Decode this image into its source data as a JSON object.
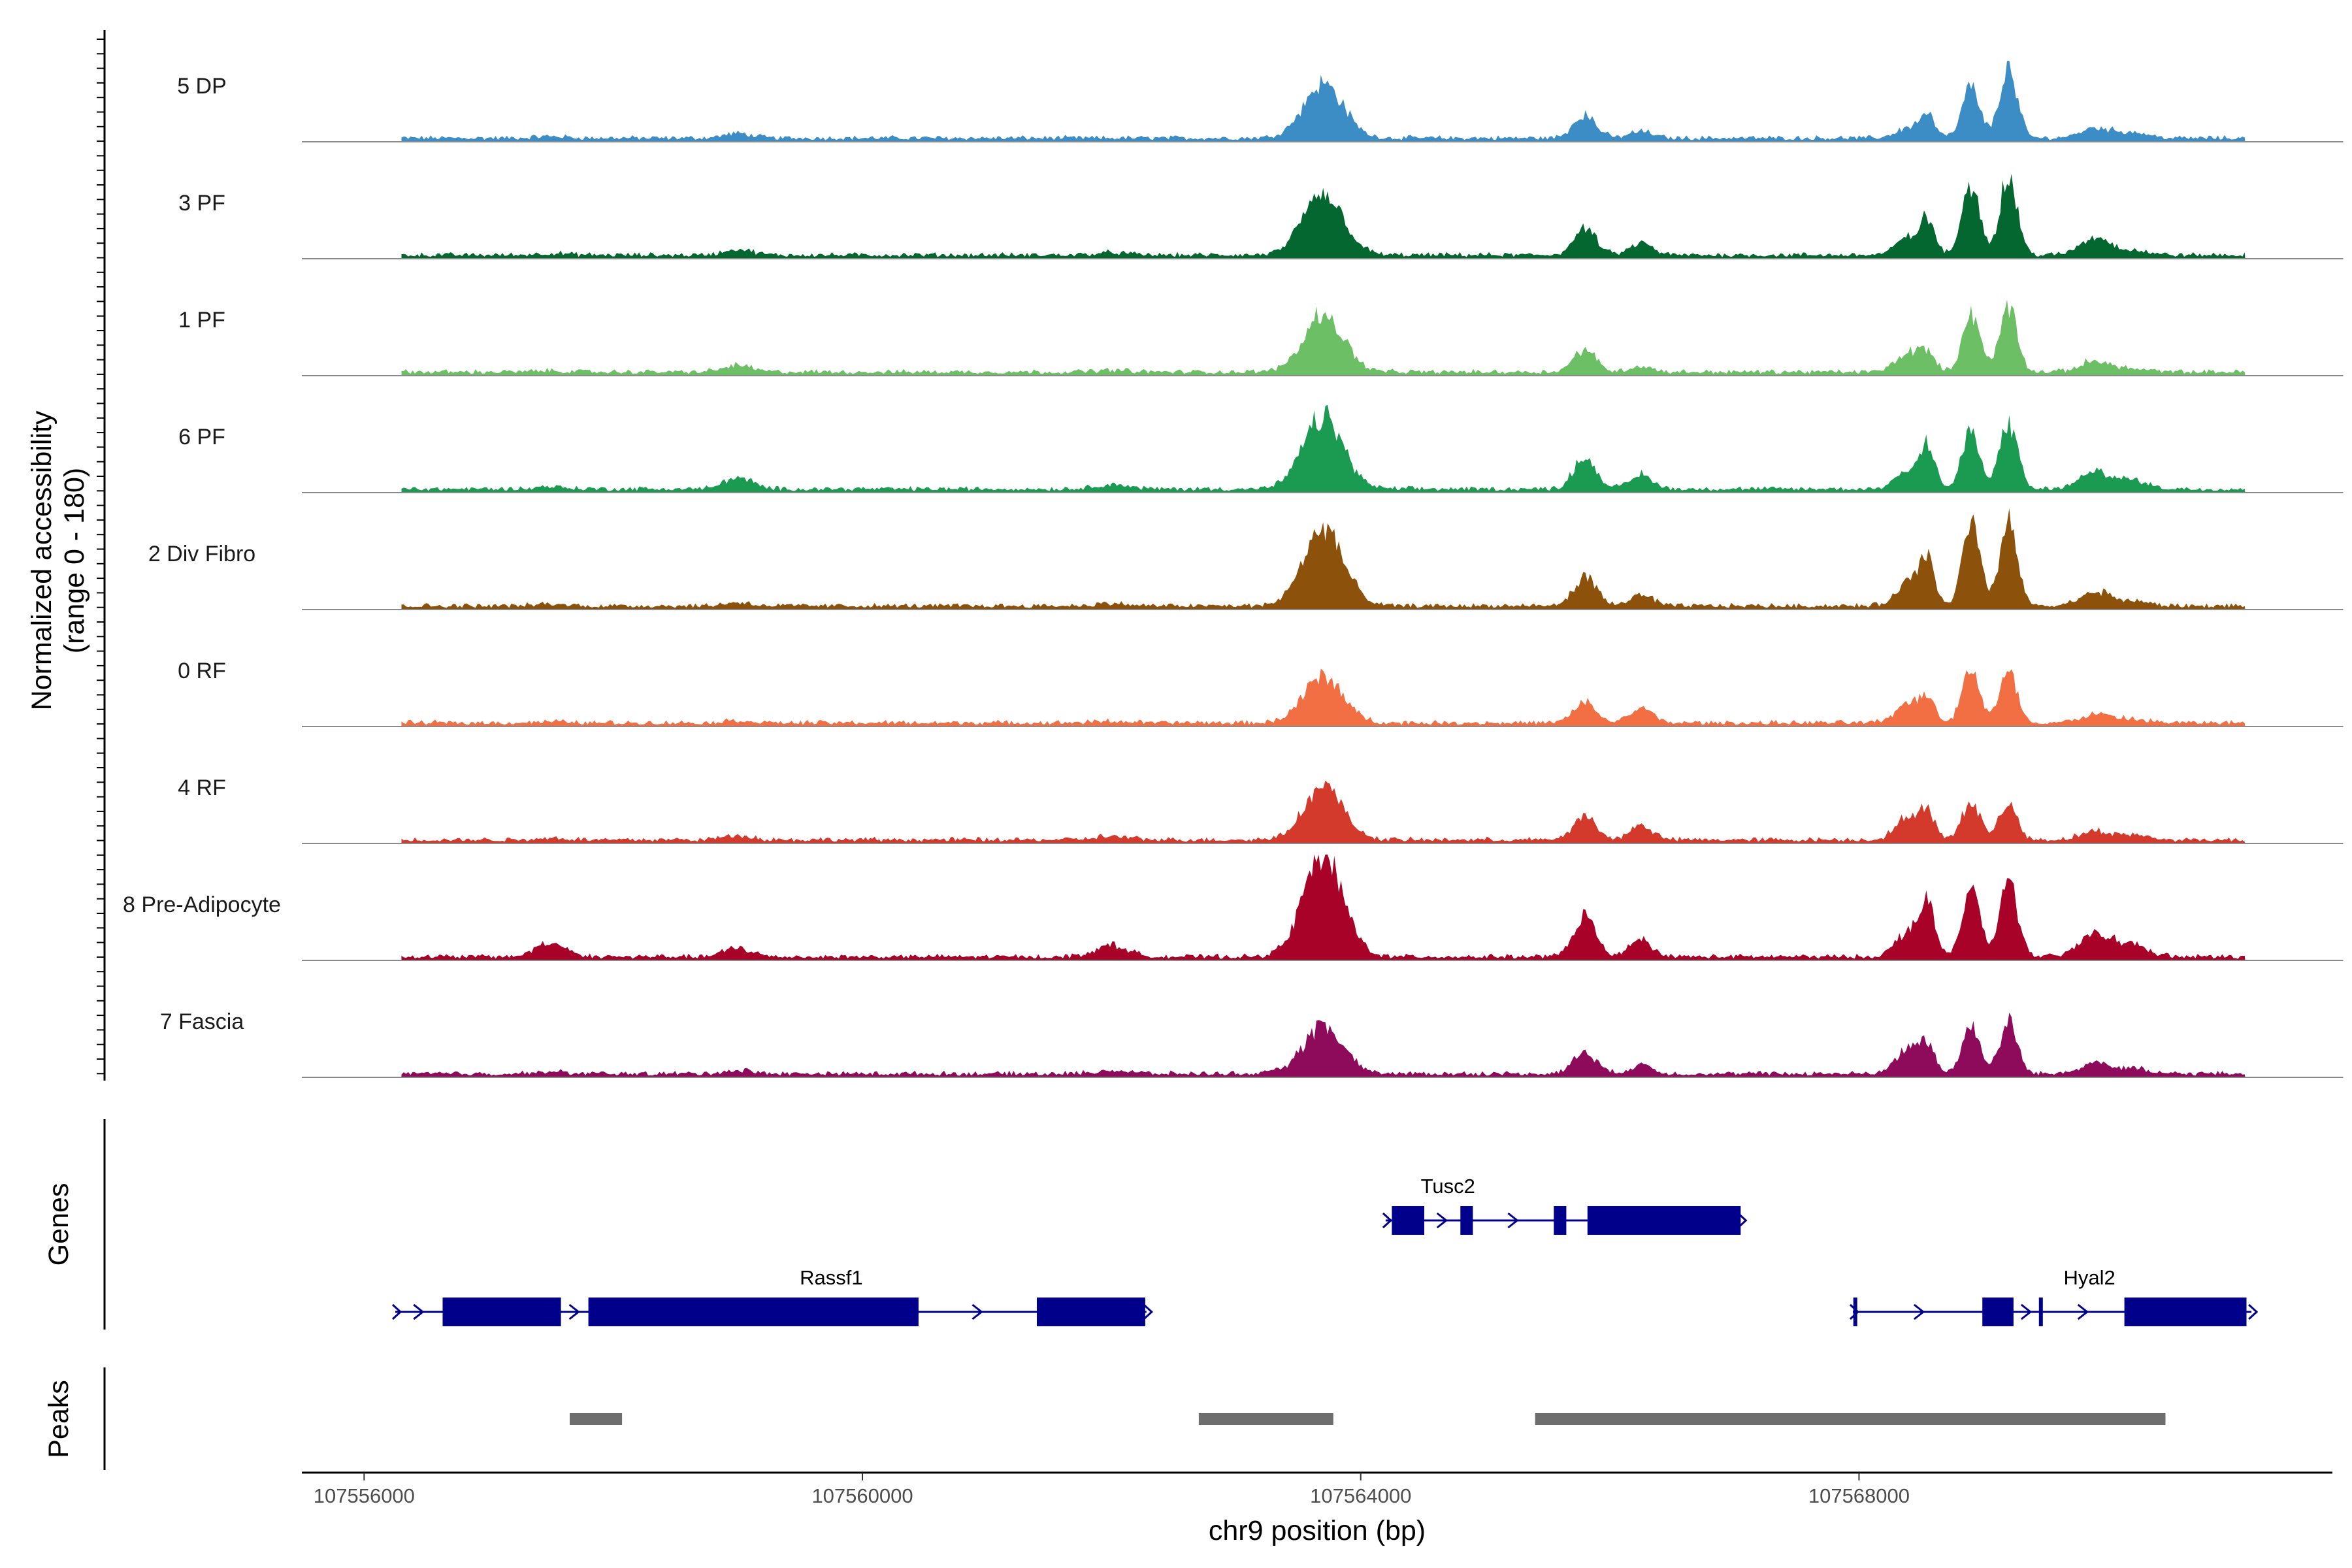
{
  "chart_data": {
    "type": "area",
    "title": "",
    "region": "chr9:107556300-107571100",
    "xlabel": "chr9 position (bp)",
    "ylabel": "Normalized accessibility",
    "ylabel_sub": "(range 0 - 180)",
    "xlim": [
      107555500,
      107571800
    ],
    "xticks": [
      107556000,
      107560000,
      107564000,
      107568000
    ],
    "xtick_labels": [
      "107556000",
      "107560000",
      "107564000",
      "107568000"
    ],
    "ylim": [
      0,
      180
    ],
    "background_level": 8,
    "peak_positions": [
      107557500,
      107559000,
      107562000,
      107563100,
      107563700,
      107565800,
      107566250,
      107568400,
      107568550,
      107568900,
      107569200,
      107569900,
      107570200
    ],
    "series": [
      {
        "name": "5 DP",
        "color": "#3c8dc6",
        "peaks": [
          3,
          8,
          0,
          0,
          95,
          40,
          12,
          18,
          40,
          90,
          120,
          18,
          10
        ]
      },
      {
        "name": "3 PF",
        "color": "#04672f",
        "peaks": [
          3,
          10,
          4,
          0,
          110,
          45,
          20,
          30,
          55,
          120,
          135,
          30,
          8
        ]
      },
      {
        "name": "1 PF",
        "color": "#6dbf65",
        "peaks": [
          2,
          12,
          3,
          0,
          100,
          40,
          10,
          35,
          30,
          100,
          110,
          20,
          5
        ]
      },
      {
        "name": "6 PF",
        "color": "#1b9b52",
        "peaks": [
          4,
          20,
          8,
          0,
          125,
          55,
          25,
          35,
          70,
          100,
          115,
          30,
          15
        ]
      },
      {
        "name": "2 Div Fibro",
        "color": "#8c520c",
        "peaks": [
          3,
          6,
          4,
          0,
          135,
          50,
          20,
          40,
          75,
          140,
          145,
          25,
          8
        ]
      },
      {
        "name": "0 RF",
        "color": "#f26f44",
        "peaks": [
          2,
          4,
          3,
          0,
          80,
          35,
          25,
          35,
          40,
          95,
          85,
          15,
          6
        ]
      },
      {
        "name": "4 RF",
        "color": "#d43a2b",
        "peaks": [
          3,
          8,
          6,
          0,
          90,
          40,
          25,
          40,
          40,
          70,
          65,
          15,
          8
        ]
      },
      {
        "name": "8 Pre-Adipocyte",
        "color": "#a80229",
        "peaks": [
          25,
          15,
          20,
          0,
          180,
          70,
          30,
          45,
          85,
          120,
          140,
          45,
          20
        ]
      },
      {
        "name": "7 Fascia",
        "color": "#8e0a5a",
        "peaks": [
          3,
          6,
          6,
          0,
          80,
          40,
          15,
          45,
          45,
          85,
          90,
          20,
          8
        ]
      }
    ],
    "gene_track": {
      "title": "Genes",
      "genes": [
        {
          "name": "Tusc2",
          "strand": "+",
          "start": 107564200,
          "end": 107567050,
          "exons": [
            [
              107564250,
              107564510
            ],
            [
              107564800,
              107564900
            ],
            [
              107565550,
              107565650
            ],
            [
              107565820,
              107567050
            ]
          ]
        },
        {
          "name": "Rassf1",
          "strand": "+",
          "start": 107556250,
          "end": 107562280,
          "exons": [
            [
              107556630,
              107557580
            ],
            [
              107557800,
              107560450
            ],
            [
              107561400,
              107562270
            ]
          ]
        },
        {
          "name": "Hyal2",
          "strand": "+",
          "start": 107567950,
          "end": 107571150,
          "exons": [
            [
              107567960,
              107567980
            ],
            [
              107568990,
              107569240
            ],
            [
              107569450,
              107569470
            ],
            [
              107570130,
              107571110
            ]
          ]
        }
      ]
    },
    "peak_track": {
      "title": "Peaks",
      "peaks": [
        [
          107557650,
          107558070
        ],
        [
          107562700,
          107563780
        ],
        [
          107565400,
          107570460
        ]
      ]
    }
  }
}
